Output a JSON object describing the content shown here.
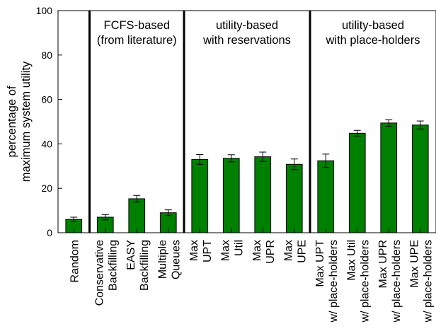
{
  "chart_data": {
    "type": "bar",
    "categories": [
      [
        "Random"
      ],
      [
        "Conservative",
        "Backfilling"
      ],
      [
        "EASY",
        "Backfilling"
      ],
      [
        "Multiple",
        "Queues"
      ],
      [
        "Max",
        "UPT"
      ],
      [
        "Max",
        "Util"
      ],
      [
        "Max",
        "UPR"
      ],
      [
        "Max",
        "UPE"
      ],
      [
        "Max UPT",
        "w/ place-holders"
      ],
      [
        "Max Util",
        "w/ place-holders"
      ],
      [
        "Max UPR",
        "w/ place-holders"
      ],
      [
        "Max UPE",
        "w/ place-holders"
      ]
    ],
    "values": [
      6,
      7,
      15.3,
      9,
      33,
      33.5,
      34.2,
      30.8,
      32.4,
      44.8,
      49.4,
      48.5
    ],
    "errors": [
      1,
      1.2,
      1.5,
      1.3,
      2.2,
      1.6,
      2.1,
      2.4,
      3.0,
      1.3,
      1.5,
      1.8
    ],
    "ylabel": [
      "percentage of",
      "maximum system utility"
    ],
    "ylim": [
      0,
      100
    ],
    "yticks": [
      "0",
      "20",
      "40",
      "60",
      "80",
      "100"
    ],
    "bar_color": "#008000",
    "groups": [
      {
        "lines": [
          "FCFS-based",
          "(from literature)"
        ]
      },
      {
        "lines": [
          "utility-based",
          "with reservations"
        ]
      },
      {
        "lines": [
          "utility-based",
          "with place-holders"
        ]
      }
    ],
    "grid": false
  }
}
